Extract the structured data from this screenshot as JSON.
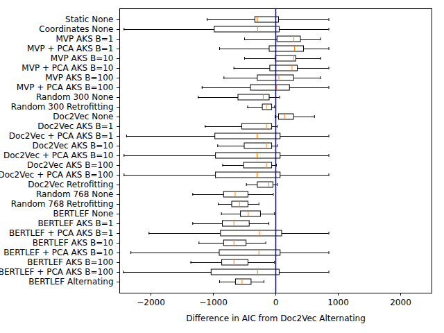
{
  "chart_data": {
    "type": "box",
    "orientation": "horizontal",
    "x_label": "Difference in AIC from Doc2Vec Alternating",
    "categories": [
      "Static None",
      "Coordinates None",
      "MVP AKS B=1",
      "MVP + PCA AKS B=1",
      "MVP AKS B=10",
      "MVP + PCA AKS B=10",
      "MVP AKS B=100",
      "MVP + PCA AKS B=100",
      "Random 300 None",
      "Random 300 Retrofitting",
      "Doc2Vec None",
      "Doc2Vec AKS B=1",
      "Doc2Vec + PCA AKS B=1",
      "Doc2Vec AKS B=10",
      "Doc2Vec + PCA AKS B=10",
      "Doc2Vec AKS B=100",
      "Doc2Vec + PCA AKS B=100",
      "Doc2Vec Retrofitting",
      "Random 768 None",
      "Random 768 Retrofitting",
      "BERTLEF None",
      "BERTLEF AKS B=1",
      "BERTLEF + PCA AKS B=1",
      "BERTLEF AKS B=10",
      "BERTLEF + PCA AKS B=10",
      "BERTLEF AKS B=100",
      "BERTLEF + PCA AKS B=100",
      "BERTLEF Alternating"
    ],
    "min": [
      -1100,
      -2430,
      -500,
      -900,
      -500,
      -670,
      -830,
      -1180,
      -1240,
      -450,
      -10,
      -1130,
      -2390,
      -930,
      -2430,
      -850,
      -2430,
      -470,
      -1330,
      -920,
      -870,
      -1330,
      -2030,
      -1230,
      -2320,
      -1360,
      -2440,
      -900
    ],
    "q1": [
      -330,
      -980,
      25,
      -100,
      0,
      -90,
      -290,
      -400,
      -600,
      -210,
      50,
      -540,
      -970,
      -500,
      -960,
      -510,
      -960,
      -290,
      -830,
      -700,
      -560,
      -850,
      -880,
      -830,
      -900,
      -860,
      -1030,
      -640
    ],
    "median": [
      -300,
      -290,
      290,
      300,
      290,
      260,
      50,
      10,
      -200,
      -150,
      140,
      -150,
      -300,
      -150,
      -300,
      -150,
      -300,
      -110,
      -650,
      -580,
      -440,
      -670,
      -260,
      -670,
      -270,
      -670,
      -290,
      -540
    ],
    "q3": [
      50,
      60,
      400,
      450,
      325,
      350,
      290,
      225,
      -100,
      -60,
      290,
      -60,
      75,
      -60,
      75,
      -60,
      75,
      -40,
      -440,
      -440,
      -240,
      -420,
      100,
      -470,
      75,
      -440,
      60,
      -390
    ],
    "max": [
      850,
      850,
      720,
      850,
      720,
      850,
      720,
      850,
      60,
      -20,
      620,
      25,
      850,
      25,
      850,
      10,
      850,
      25,
      -40,
      -270,
      -20,
      -110,
      850,
      -160,
      850,
      -20,
      850,
      -190
    ],
    "reference_x": 0,
    "xlim": [
      -2500,
      2500
    ],
    "xticks": [
      {
        "value": -2000,
        "label": "−2000"
      },
      {
        "value": -1000,
        "label": "−1000"
      },
      0,
      1000,
      2000
    ]
  }
}
